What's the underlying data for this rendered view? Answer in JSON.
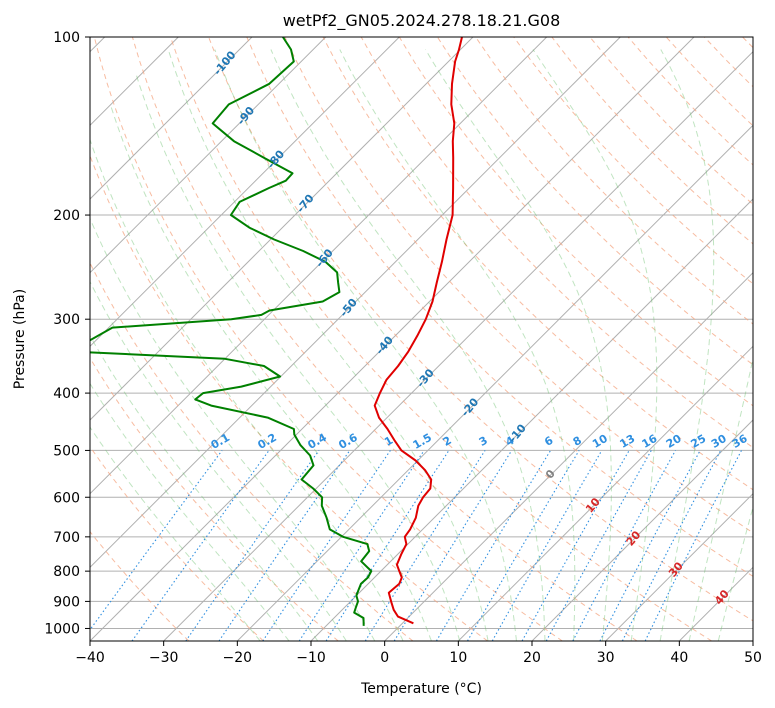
{
  "chart_data": {
    "type": "line",
    "title": "wetPf2_GN05.2024.278.18.21.G08",
    "xlabel": "Temperature (°C)",
    "ylabel": "Pressure (hPa)",
    "xlim": [
      -40,
      50
    ],
    "ylim": [
      1050,
      100
    ],
    "y_scale": "log",
    "grid": true,
    "x_ticks": [
      -40,
      -30,
      -20,
      -10,
      0,
      10,
      20,
      30,
      40,
      50
    ],
    "y_ticks": [
      100,
      200,
      300,
      400,
      500,
      600,
      700,
      800,
      900,
      1000
    ],
    "skew": 1.0,
    "series": [
      {
        "color": "#e00000",
        "p": [
          980,
          955,
          930,
          900,
          870,
          840,
          820,
          800,
          780,
          750,
          720,
          700,
          680,
          650,
          620,
          600,
          580,
          560,
          540,
          520,
          500,
          480,
          460,
          440,
          420,
          400,
          380,
          360,
          340,
          320,
          300,
          280,
          260,
          240,
          220,
          200,
          180,
          160,
          150,
          140,
          130,
          120,
          110,
          105,
          100
        ],
        "t": [
          1.5,
          -1.5,
          -3.0,
          -4.5,
          -6.0,
          -5.8,
          -6.3,
          -7.5,
          -8.7,
          -9.5,
          -10.2,
          -11.4,
          -11.7,
          -12.5,
          -13.8,
          -14.3,
          -14.5,
          -15.6,
          -17.7,
          -20.3,
          -23.6,
          -26.0,
          -28.4,
          -31.1,
          -33.3,
          -34.3,
          -35.2,
          -35.5,
          -36.1,
          -37.0,
          -38.1,
          -39.6,
          -41.6,
          -43.7,
          -46.1,
          -48.6,
          -52.2,
          -56.3,
          -58.6,
          -60.8,
          -63.8,
          -66.5,
          -69.1,
          -70.2,
          -71.5
        ]
      },
      {
        "color": "#008000",
        "p": [
          990,
          960,
          940,
          920,
          900,
          880,
          860,
          840,
          820,
          800,
          770,
          740,
          720,
          700,
          680,
          650,
          620,
          600,
          580,
          560,
          530,
          510,
          490,
          470,
          460,
          440,
          420,
          410,
          400,
          390,
          375,
          360,
          350,
          340,
          310,
          300,
          295,
          290,
          280,
          270,
          260,
          250,
          240,
          230,
          220,
          210,
          200,
          190,
          180,
          175,
          170,
          160,
          150,
          140,
          130,
          120,
          110,
          105,
          100
        ],
        "t": [
          -4.9,
          -6.0,
          -8.0,
          -8.5,
          -9.0,
          -10.0,
          -10.5,
          -11.0,
          -10.9,
          -11.3,
          -14.0,
          -14.3,
          -15.5,
          -19.8,
          -22.6,
          -24.6,
          -26.9,
          -28.0,
          -30.4,
          -33.2,
          -33.5,
          -35.3,
          -38.0,
          -40.3,
          -41.1,
          -46.2,
          -55.5,
          -58.5,
          -58.3,
          -54.0,
          -50.1,
          -53.7,
          -60.0,
          -82.0,
          -79.5,
          -64.5,
          -61.0,
          -60.5,
          -54.5,
          -53.5,
          -55.0,
          -56.5,
          -59.5,
          -64.0,
          -69.5,
          -74.5,
          -78.7,
          -79.3,
          -77.2,
          -75.9,
          -76.0,
          -82.0,
          -88.3,
          -93.6,
          -94.0,
          -91.3,
          -91.0,
          -93.0,
          -95.8
        ]
      }
    ],
    "dry_adiabat_labels": [
      "-100",
      "-90",
      "-80",
      "-70",
      "-60",
      "-50",
      "-40",
      "-30",
      "-20",
      "-10",
      "0",
      "10",
      "20",
      "30",
      "40"
    ],
    "mixing_ratio_labels": [
      "0.1",
      "0.2",
      "0.4",
      "0.6",
      "1",
      "1.5",
      "2",
      "3",
      "4",
      "6",
      "8",
      "10",
      "13",
      "16",
      "20",
      "25",
      "30",
      "36"
    ]
  }
}
